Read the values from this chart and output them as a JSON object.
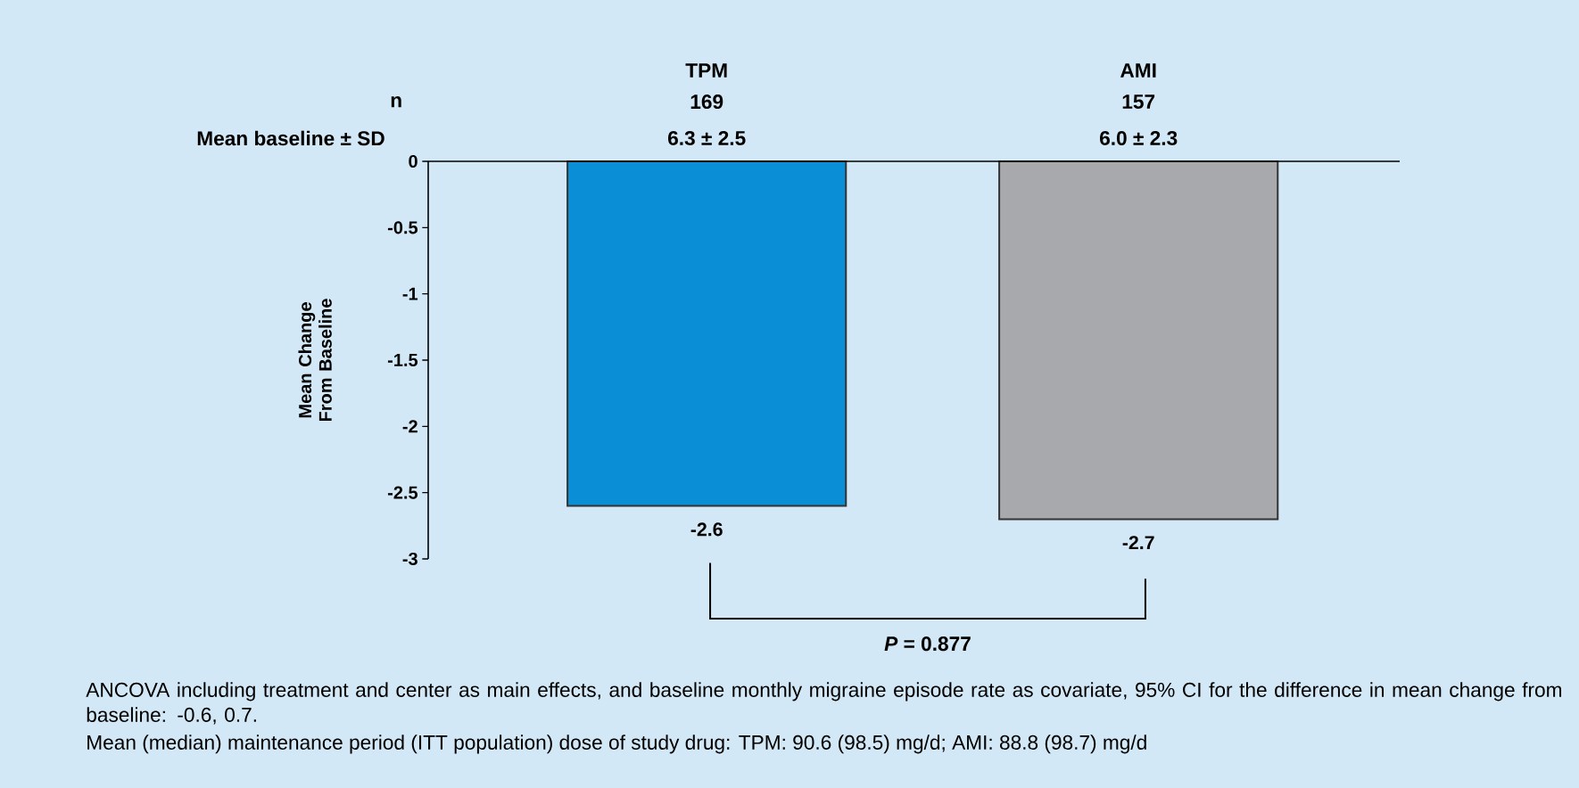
{
  "chart_data": {
    "type": "bar",
    "categories": [
      "TPM",
      "AMI"
    ],
    "values": [
      -2.6,
      -2.7
    ],
    "colors": [
      "#0a8fd6",
      "#a8a9ad"
    ],
    "data_labels": true,
    "ylabel": "Mean Change From Baseline",
    "ylim": [
      -3,
      0
    ],
    "yticks": [
      0,
      -0.5,
      -1,
      -1.5,
      -2,
      -2.5,
      -3
    ],
    "annotations": [
      "n",
      "169",
      "157",
      "Mean baseline ± SD",
      "6.3 ± 2.5",
      "6.0 ± 2.3",
      "*P* = 0.877",
      "ANCOVA including treatment and center as main effects, and baseline monthly migraine episode rate as covariate, 95% CI for the difference in mean change from baseline: -0.6, 0.7.",
      "Mean (median) maintenance period (ITT population) dose of study drug: TPM: 90.6 (98.5) mg/d; AMI: 88.8 (98.7) mg/d"
    ]
  }
}
